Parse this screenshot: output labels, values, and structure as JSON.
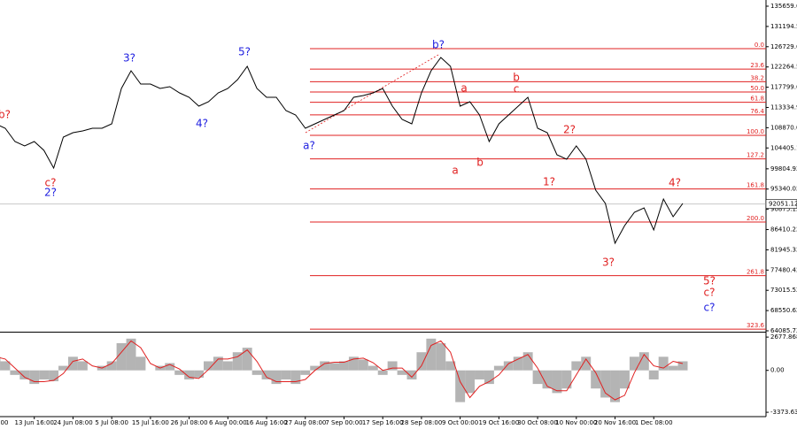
{
  "chart_data": [
    {
      "type": "line",
      "categories": [
        "00",
        null,
        null,
        null,
        "13 Jun 16:00",
        null,
        null,
        null,
        "24 Jun 08:00",
        null,
        null,
        null,
        "5 Jul 08:00",
        null,
        null,
        null,
        "15 Jul 16:00",
        null,
        null,
        null,
        "26 Jul 08:00",
        null,
        null,
        null,
        "6 Aug 00:00",
        null,
        null,
        null,
        "16 Aug 16:00",
        null,
        null,
        null,
        "27 Aug 08:00",
        null,
        null,
        null,
        "7 Sep 00:00",
        null,
        null,
        null,
        "17 Sep 16:00",
        null,
        null,
        null,
        "28 Sep 08:00",
        null,
        null,
        null,
        "9 Oct 00:00",
        null,
        null,
        null,
        "19 Oct 16:00",
        null,
        null,
        null,
        "30 Oct 08:00",
        null,
        null,
        null,
        "10 Nov 00:00",
        null,
        null,
        null,
        "20 Nov 16:00",
        null,
        null,
        null,
        "1 Dec 08:00",
        null,
        null,
        null
      ],
      "series": [
        {
          "color": "#000000",
          "values": [
            109723,
            108747,
            105822,
            104847,
            105822,
            103872,
            99972,
            106797,
            107772,
            108162,
            108747,
            108747,
            109723,
            117523,
            121424,
            118498,
            118498,
            117523,
            117913,
            116548,
            115573,
            113623,
            114598,
            116548,
            117523,
            119473,
            122399,
            117523,
            115573,
            115573,
            112648,
            111673,
            108747,
            109723,
            110698,
            111673,
            112648,
            115573,
            115963,
            116548,
            117523,
            113623,
            110698,
            109723,
            116548,
            121424,
            124349,
            122399,
            113623,
            114598,
            111673,
            105822,
            109723,
            111673,
            113623,
            115573,
            108747,
            107772,
            102897,
            101922,
            104847,
            101922,
            95096,
            92171,
            83395,
            87295,
            90220,
            91195,
            86320,
            93146,
            89245,
            92171
          ]
        }
      ],
      "ylim": [
        64085.72,
        137025
      ],
      "yticks": [
        135659.62,
        131194.52,
        126729.62,
        122264.52,
        117799.62,
        113334.92,
        108870.02,
        104405.12,
        99804.92,
        95340.02,
        90875.12,
        86410.22,
        81945.32,
        77480.42,
        73015.52,
        68550.62,
        64085.72
      ],
      "last_price": 92051.12,
      "fib": {
        "color": "#e02020",
        "high": 126299,
        "low": 107186,
        "levels": [
          {
            "value": 0,
            "label": "0.0"
          },
          23.6,
          38.2,
          {
            "value": 50,
            "label": "50.0"
          },
          61.8,
          76.4,
          {
            "value": 100,
            "label": "100.0"
          },
          127.2,
          161.8,
          {
            "value": 200,
            "label": "200.0"
          },
          261.8,
          323.6
        ]
      },
      "annotations": [
        {
          "text": "b?",
          "color": "#e02020"
        },
        {
          "text": "c?",
          "color": "#e02020"
        },
        {
          "text": "2?",
          "color": "#2020e0"
        },
        {
          "text": "3?",
          "color": "#2020e0"
        },
        {
          "text": "4?",
          "color": "#2020e0"
        },
        {
          "text": "5?",
          "color": "#2020e0"
        },
        {
          "text": "a?",
          "color": "#2020e0"
        },
        {
          "text": "b?",
          "color": "#2020e0"
        },
        {
          "text": "a",
          "color": "#e02020"
        },
        {
          "text": "a",
          "color": "#e02020"
        },
        {
          "text": "b",
          "color": "#e02020"
        },
        {
          "text": "b",
          "color": "#e02020"
        },
        {
          "text": "c",
          "color": "#e02020"
        },
        {
          "text": "1?",
          "color": "#e02020"
        },
        {
          "text": "2?",
          "color": "#e02020"
        },
        {
          "text": "3?",
          "color": "#e02020"
        },
        {
          "text": "4?",
          "color": "#e02020"
        },
        {
          "text": "5?",
          "color": "#e02020"
        },
        {
          "text": "c?",
          "color": "#e02020"
        },
        {
          "text": "c?",
          "color": "#2020e0"
        }
      ]
    },
    {
      "type": "bar",
      "color": "#b4b4b4",
      "values": [
        1095,
        730,
        -365,
        -730,
        -1095,
        -730,
        -876,
        365,
        1095,
        730,
        0,
        365,
        730,
        2190,
        2555,
        1095,
        0,
        365,
        584,
        -365,
        -730,
        -584,
        730,
        1095,
        730,
        1460,
        1825,
        -365,
        -730,
        -1095,
        -730,
        -1095,
        -365,
        365,
        730,
        584,
        730,
        1095,
        876,
        365,
        -365,
        730,
        -365,
        -730,
        1460,
        2555,
        2190,
        730,
        -2555,
        -1825,
        -730,
        -1095,
        365,
        730,
        1095,
        1460,
        -1095,
        -1460,
        -1825,
        -1460,
        730,
        1095,
        -1460,
        -2190,
        -2555,
        -1460,
        1095,
        1460,
        -730,
        1095,
        365,
        730
      ],
      "signal": {
        "color": "#e02020",
        "values": [
          1095,
          913,
          183,
          -548,
          -913,
          -913,
          -803,
          -256,
          730,
          913,
          365,
          183,
          548,
          1460,
          2373,
          1825,
          548,
          183,
          475,
          110,
          -548,
          -657,
          73,
          913,
          913,
          1095,
          1643,
          730,
          -548,
          -913,
          -913,
          -913,
          -730,
          0,
          548,
          657,
          657,
          913,
          986,
          621,
          0,
          183,
          183,
          -548,
          365,
          2008,
          2373,
          1460,
          -913,
          -2190,
          -1278,
          -913,
          -365,
          548,
          913,
          1278,
          183,
          -1278,
          -1643,
          -1643,
          -365,
          913,
          -183,
          -1825,
          -2373,
          -2008,
          -183,
          1278,
          365,
          183,
          730,
          548
        ]
      },
      "ylim": [
        -3723,
        2970
      ],
      "yticks": [
        2677.868,
        {
          "value": 0,
          "label": "0.00"
        },
        -3373.63
      ]
    }
  ]
}
